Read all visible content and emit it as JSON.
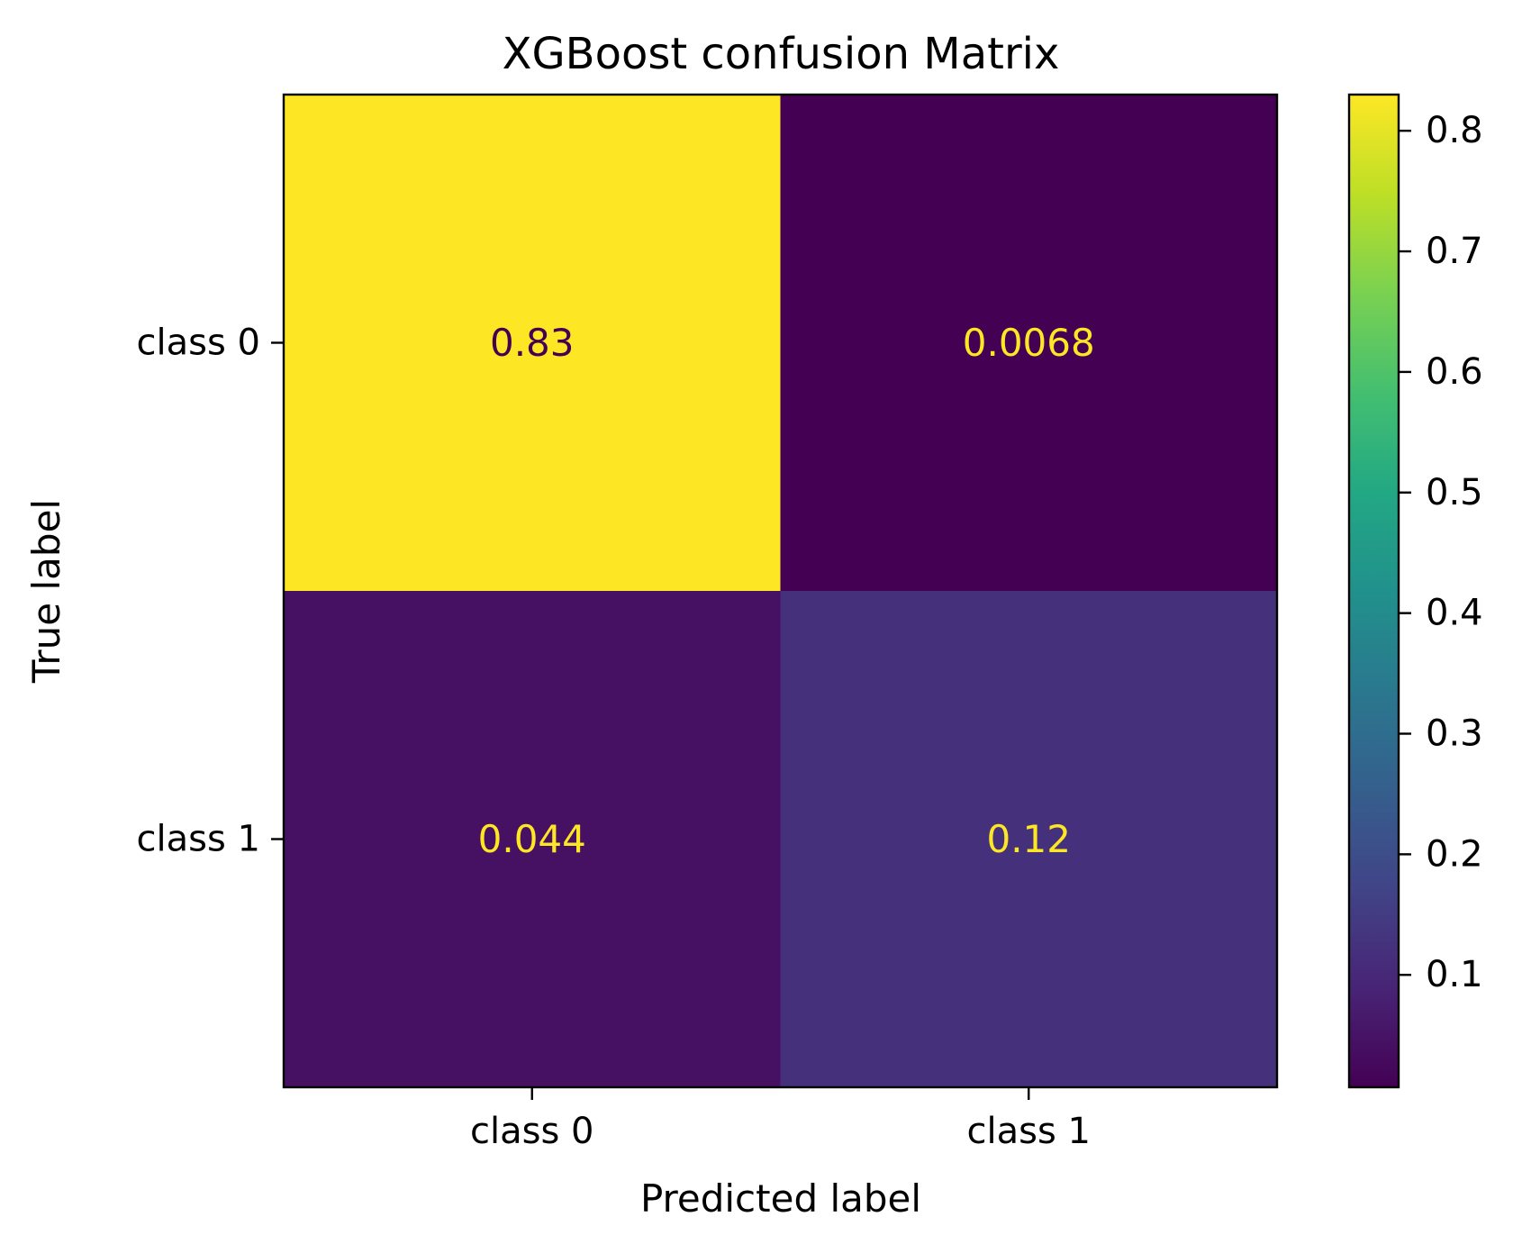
{
  "chart_data": {
    "type": "heatmap",
    "title": "XGBoost confusion Matrix",
    "xlabel": "Predicted label",
    "ylabel": "True label",
    "x_categories": [
      "class 0",
      "class 1"
    ],
    "y_categories": [
      "class 0",
      "class 1"
    ],
    "values": [
      [
        0.83,
        0.0068
      ],
      [
        0.044,
        0.12
      ]
    ],
    "cell_labels": [
      [
        "0.83",
        "0.0068"
      ],
      [
        "0.044",
        "0.12"
      ]
    ],
    "colormap": "viridis",
    "colorbar": {
      "range": [
        0.0068,
        0.83
      ],
      "ticks": [
        0.1,
        0.2,
        0.3,
        0.4,
        0.5,
        0.6,
        0.7,
        0.8
      ],
      "tick_labels": [
        "0.1",
        "0.2",
        "0.3",
        "0.4",
        "0.5",
        "0.6",
        "0.7",
        "0.8"
      ]
    },
    "grid": false
  }
}
